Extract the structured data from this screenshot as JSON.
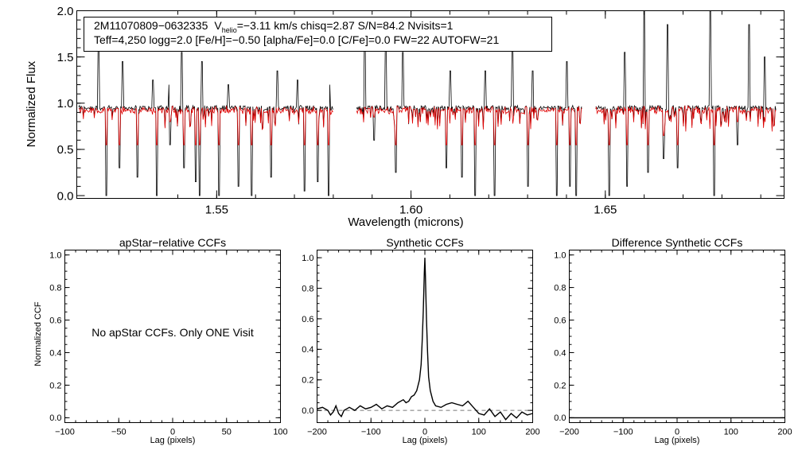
{
  "colors": {
    "observed": "#000000",
    "model": "#e00000",
    "zero_line": "#777777",
    "axes": "#000000"
  },
  "chart_data": [
    {
      "id": "spectrum",
      "type": "line",
      "xlabel": "Wavelength (microns)",
      "ylabel": "Normalized Flux",
      "xlim": [
        1.514,
        1.696
      ],
      "ylim": [
        -0.03,
        2.0
      ],
      "xticks": [
        1.55,
        1.6,
        1.65
      ],
      "xtick_labels": [
        "1.55",
        "1.60",
        "1.65"
      ],
      "yticks": [
        0.0,
        0.5,
        1.0,
        1.5,
        2.0
      ],
      "ytick_labels": [
        "0.0",
        "0.5",
        "1.0",
        "1.5",
        "2.0"
      ],
      "legend": {
        "star_id": "2M11070809−0632335",
        "vhelio_label": "V",
        "vhelio_sub": "helio",
        "line1_rest": "=−3.11 km/s  chisq=2.87  S/N=84.2  Nvisits=1",
        "line2": "Teff=4,250 logg=2.0 [Fe/H]=−0.50 [alpha/Fe]=0.0 [C/Fe]=0.0 FW=22 AUTOFW=21"
      },
      "summary": {
        "continuum": 0.95,
        "chips": [
          [
            1.5145,
            1.58
          ],
          [
            1.586,
            1.644
          ],
          [
            1.6475,
            1.694
          ]
        ],
        "emission_spikes": [
          [
            1.5195,
            1.75
          ],
          [
            1.5258,
            1.45
          ],
          [
            1.5295,
            1.6
          ],
          [
            1.5335,
            1.25
          ],
          [
            1.5378,
            1.2
          ],
          [
            1.541,
            1.55
          ],
          [
            1.5462,
            1.45
          ],
          [
            1.553,
            1.2
          ],
          [
            1.5655,
            1.35
          ],
          [
            1.5708,
            1.25
          ],
          [
            1.579,
            1.2
          ],
          [
            1.588,
            1.75
          ],
          [
            1.5935,
            1.7
          ],
          [
            1.5978,
            1.55
          ],
          [
            1.61,
            1.35
          ],
          [
            1.619,
            1.35
          ],
          [
            1.626,
            1.7
          ],
          [
            1.6312,
            1.35
          ],
          [
            1.64,
            1.45
          ],
          [
            1.655,
            1.55
          ],
          [
            1.66,
            2.0
          ],
          [
            1.666,
            1.85
          ],
          [
            1.677,
            2.0
          ],
          [
            1.687,
            1.85
          ],
          [
            1.691,
            1.5
          ]
        ],
        "absorption_dips": [
          [
            1.5215,
            0.0
          ],
          [
            1.525,
            0.3
          ],
          [
            1.5295,
            0.2
          ],
          [
            1.5345,
            0.0
          ],
          [
            1.538,
            0.55
          ],
          [
            1.5415,
            0.3
          ],
          [
            1.5445,
            0.15
          ],
          [
            1.5455,
            0.0
          ],
          [
            1.5505,
            0.0
          ],
          [
            1.5555,
            0.1
          ],
          [
            1.559,
            0.0
          ],
          [
            1.564,
            0.2
          ],
          [
            1.5725,
            0.05
          ],
          [
            1.576,
            0.15
          ],
          [
            1.5788,
            0.0
          ],
          [
            1.5905,
            0.6
          ],
          [
            1.596,
            0.25
          ],
          [
            1.609,
            0.3
          ],
          [
            1.613,
            0.2
          ],
          [
            1.6165,
            0.0
          ],
          [
            1.6215,
            0.0
          ],
          [
            1.63,
            0.1
          ],
          [
            1.6375,
            0.0
          ],
          [
            1.6408,
            0.1
          ],
          [
            1.6425,
            0.0
          ],
          [
            1.651,
            0.0
          ],
          [
            1.6555,
            0.1
          ],
          [
            1.661,
            0.25
          ],
          [
            1.665,
            0.4
          ],
          [
            1.6685,
            0.3
          ],
          [
            1.678,
            0.0
          ],
          [
            1.684,
            0.55
          ]
        ]
      }
    },
    {
      "id": "apstar-ccf",
      "type": "line",
      "title": "apStar−relative CCFs",
      "xlabel": "Lag (pixels)",
      "ylabel": "Normalized CCF",
      "xlim": [
        -100,
        100
      ],
      "ylim": [
        -0.03,
        1.03
      ],
      "xticks": [
        -100,
        -50,
        0,
        50,
        100
      ],
      "xtick_labels": [
        "−100",
        "−50",
        "0",
        "50",
        "100"
      ],
      "yticks": [
        0.0,
        0.2,
        0.4,
        0.6,
        0.8,
        1.0
      ],
      "ytick_labels": [
        "0.0",
        "0.2",
        "0.4",
        "0.6",
        "0.8",
        "1.0"
      ],
      "note": "No apStar CCFs.  Only ONE Visit",
      "series": []
    },
    {
      "id": "synthetic-ccf",
      "type": "line",
      "title": "Synthetic CCFs",
      "xlabel": "Lag (pixels)",
      "ylabel": "",
      "xlim": [
        -200,
        200
      ],
      "ylim": [
        -0.08,
        1.05
      ],
      "xticks": [
        -200,
        -100,
        0,
        100,
        200
      ],
      "xtick_labels": [
        "−200",
        "−100",
        "0",
        "100",
        "200"
      ],
      "yticks": [
        0.0,
        0.2,
        0.4,
        0.6,
        0.8,
        1.0
      ],
      "ytick_labels": [
        "0.0",
        "0.2",
        "0.4",
        "0.6",
        "0.8",
        "1.0"
      ],
      "zero_line": 0.0,
      "series": [
        {
          "name": "ccf",
          "x": [
            -200,
            -190,
            -180,
            -175,
            -170,
            -165,
            -160,
            -155,
            -150,
            -145,
            -140,
            -130,
            -120,
            -110,
            -100,
            -90,
            -80,
            -70,
            -60,
            -50,
            -40,
            -35,
            -30,
            -25,
            -20,
            -15,
            -10,
            -7,
            -5,
            -3,
            -1,
            0,
            1,
            3,
            5,
            7,
            10,
            15,
            20,
            30,
            40,
            50,
            60,
            70,
            80,
            90,
            100,
            110,
            120,
            130,
            140,
            150,
            160,
            170,
            180,
            190,
            200
          ],
          "y": [
            0.01,
            0.02,
            0.0,
            -0.03,
            -0.01,
            0.03,
            -0.02,
            -0.04,
            0.0,
            0.01,
            0.02,
            0.0,
            0.03,
            0.01,
            0.02,
            0.04,
            0.01,
            0.03,
            0.02,
            0.05,
            0.07,
            0.05,
            0.06,
            0.09,
            0.1,
            0.13,
            0.2,
            0.3,
            0.45,
            0.65,
            0.9,
            1.0,
            0.88,
            0.6,
            0.38,
            0.22,
            0.13,
            0.06,
            0.03,
            0.02,
            0.04,
            0.05,
            0.04,
            0.03,
            0.06,
            0.02,
            -0.02,
            -0.03,
            0.01,
            -0.04,
            -0.01,
            -0.06,
            -0.02,
            -0.05,
            -0.01,
            -0.03,
            -0.02
          ]
        }
      ]
    },
    {
      "id": "difference-ccf",
      "type": "line",
      "title": "Difference Synthetic CCFs",
      "xlabel": "Lag (pixels)",
      "ylabel": "",
      "xlim": [
        -200,
        200
      ],
      "ylim": [
        -0.03,
        1.03
      ],
      "xticks": [
        -200,
        -100,
        0,
        100,
        200
      ],
      "xtick_labels": [
        "−200",
        "−100",
        "0",
        "100",
        "200"
      ],
      "yticks": [
        0.0,
        0.2,
        0.4,
        0.6,
        0.8,
        1.0
      ],
      "ytick_labels": [
        "0.0",
        "0.2",
        "0.4",
        "0.6",
        "0.8",
        "1.0"
      ],
      "series": [
        {
          "name": "difference",
          "x": [
            -200,
            200
          ],
          "y": [
            0.0,
            0.0
          ]
        }
      ]
    }
  ]
}
